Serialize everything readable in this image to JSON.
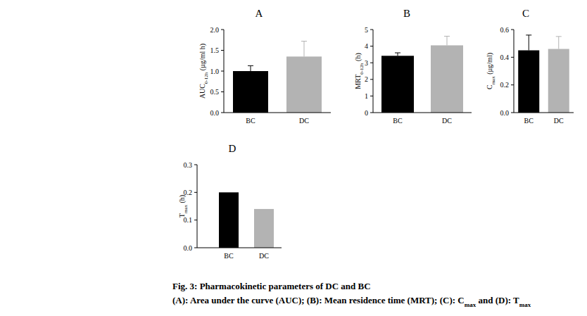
{
  "chart_data": [
    {
      "type": "bar",
      "title": "A",
      "ylabel": {
        "text": "AUC",
        "sub": "0-12h",
        "after": " (µg/ml h)"
      },
      "categories": [
        "BC",
        "DC"
      ],
      "values": [
        1.0,
        1.35
      ],
      "errors": [
        0.13,
        0.37
      ],
      "colors": [
        "#000000",
        "#b3b3b3"
      ],
      "ylim": [
        0,
        2
      ],
      "yticks": [
        {
          "value": 0,
          "label": "0.0"
        },
        {
          "value": 0.5,
          "label": "0.5"
        },
        {
          "value": 1,
          "label": "1.0"
        },
        {
          "value": 1.5,
          "label": "1.5"
        },
        {
          "value": 2,
          "label": "2.0"
        }
      ],
      "grid": false
    },
    {
      "type": "bar",
      "title": "B",
      "ylabel": {
        "text": "MRT",
        "sub": "0-12h",
        "after": " (h)"
      },
      "categories": [
        "BC",
        "DC"
      ],
      "values": [
        3.42,
        4.05
      ],
      "errors": [
        0.18,
        0.55
      ],
      "colors": [
        "#000000",
        "#b3b3b3"
      ],
      "ylim": [
        0,
        5
      ],
      "yticks": [
        0,
        1,
        2,
        3,
        4,
        5
      ],
      "grid": false
    },
    {
      "type": "bar",
      "title": "C",
      "ylabel": {
        "text": "C",
        "sub": "max",
        "after": " (µg/ml)"
      },
      "categories": [
        "BC",
        "DC"
      ],
      "values": [
        0.45,
        0.46
      ],
      "errors": [
        0.11,
        0.09
      ],
      "colors": [
        "#000000",
        "#b3b3b3"
      ],
      "ylim": [
        0,
        0.6
      ],
      "yticks": [
        {
          "value": 0,
          "label": "0.0"
        },
        0.2,
        0.4,
        0.6
      ],
      "grid": false
    },
    {
      "type": "bar",
      "title": "D",
      "ylabel": {
        "text": "T",
        "sub": "max",
        "after": " (h)"
      },
      "categories": [
        "BC",
        "DC"
      ],
      "values": [
        0.2,
        0.14
      ],
      "colors": [
        "#000000",
        "#b3b3b3"
      ],
      "ylim": [
        0,
        0.3
      ],
      "yticks": [
        {
          "value": 0,
          "label": "0.0"
        },
        0.1,
        0.2,
        0.3
      ],
      "grid": false
    }
  ],
  "caption": {
    "title": "Fig. 3: Pharmacokinetic parameters of DC and BC",
    "line": [
      {
        "text": "(A): Area under the curve (AUC); (B): Mean residence time (MRT); (C): C"
      },
      {
        "sub": "max"
      },
      {
        "text": " and (D): T"
      },
      {
        "sub": "max"
      }
    ]
  }
}
